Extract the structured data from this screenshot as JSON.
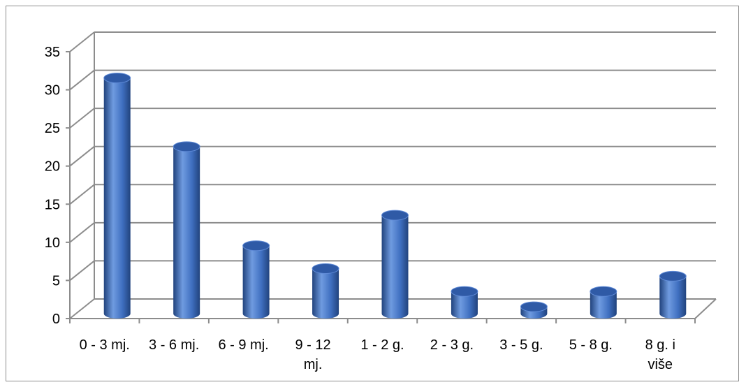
{
  "chart_data": {
    "type": "bar",
    "style": "3d-cylinder",
    "categories": [
      [
        "0 - 3 mj."
      ],
      [
        "3 - 6 mj."
      ],
      [
        "6 - 9 mj."
      ],
      [
        "9 - 12",
        "mj."
      ],
      [
        "1 - 2 g."
      ],
      [
        "2 - 3 g."
      ],
      [
        "3 - 5 g."
      ],
      [
        "5 - 8 g."
      ],
      [
        "8 g. i",
        "više"
      ]
    ],
    "values": [
      31,
      22,
      9,
      6,
      13,
      3,
      1,
      3,
      5
    ],
    "ylim": [
      0,
      35
    ],
    "yticks": [
      "0",
      "5",
      "10",
      "15",
      "20",
      "25",
      "30",
      "35"
    ],
    "grid": true,
    "legend": "none",
    "colors": {
      "bar_light": "#6f9be0",
      "bar_mid": "#3f6fc0",
      "bar_dark": "#21437d",
      "bar_top": "#2f5aa6",
      "grid": "#8c8c8c"
    }
  }
}
